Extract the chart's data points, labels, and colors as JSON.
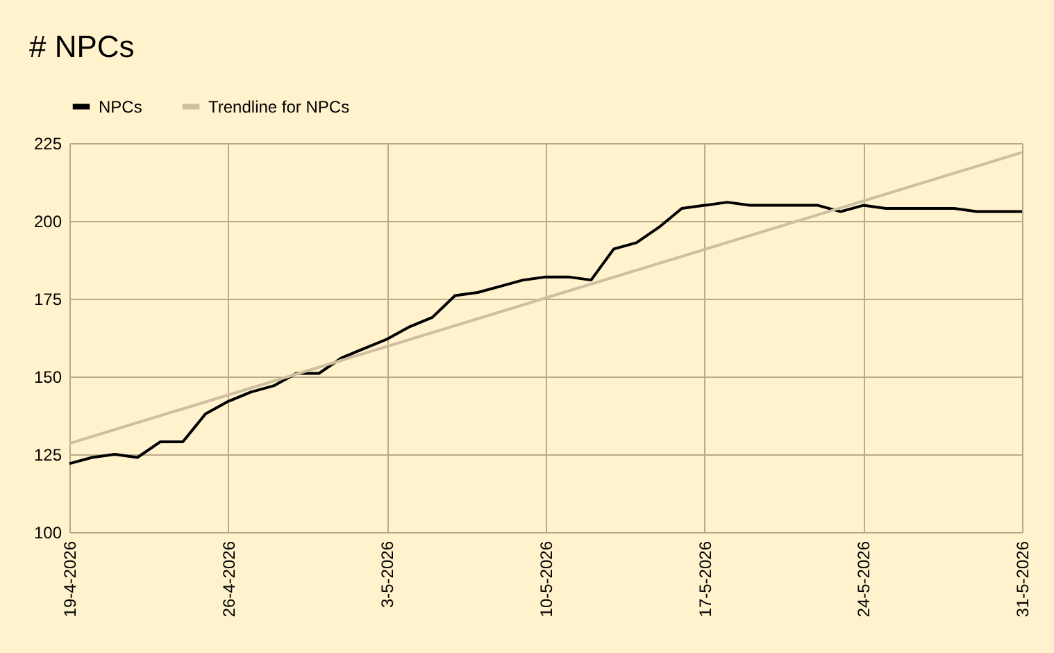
{
  "chart_data": {
    "type": "line",
    "title": "# NPCs",
    "x": [
      "2026-04-19",
      "2026-04-20",
      "2026-04-21",
      "2026-04-22",
      "2026-04-23",
      "2026-04-24",
      "2026-04-25",
      "2026-04-26",
      "2026-04-27",
      "2026-04-28",
      "2026-04-29",
      "2026-04-30",
      "2026-05-01",
      "2026-05-02",
      "2026-05-03",
      "2026-05-04",
      "2026-05-05",
      "2026-05-06",
      "2026-05-07",
      "2026-05-08",
      "2026-05-09",
      "2026-05-10",
      "2026-05-11",
      "2026-05-12",
      "2026-05-13",
      "2026-05-14",
      "2026-05-15",
      "2026-05-16",
      "2026-05-17",
      "2026-05-18",
      "2026-05-19",
      "2026-05-20",
      "2026-05-21",
      "2026-05-22",
      "2026-05-23",
      "2026-05-24",
      "2026-05-25",
      "2026-05-26",
      "2026-05-27",
      "2026-05-28",
      "2026-05-29",
      "2026-05-30",
      "2026-05-31"
    ],
    "series": [
      {
        "name": "NPCs",
        "color": "#000000",
        "values": [
          122,
          124,
          125,
          124,
          129,
          129,
          138,
          142,
          145,
          147,
          151,
          151,
          156,
          159,
          162,
          166,
          169,
          176,
          177,
          179,
          181,
          182,
          182,
          181,
          191,
          193,
          198,
          204,
          205,
          206,
          205,
          205,
          205,
          205,
          203,
          205,
          204,
          204,
          204,
          204,
          203,
          203,
          203
        ]
      },
      {
        "name": "Trendline for NPCs",
        "type": "line",
        "color": "#cdbf9f",
        "x": [
          "2026-04-19",
          "2026-05-31"
        ],
        "values": [
          128.5,
          222
        ]
      }
    ],
    "xlim": [
      "2026-04-19",
      "2026-05-31"
    ],
    "xticks": [
      {
        "value": "2026-04-19",
        "label": "19-4-2026"
      },
      {
        "value": "2026-04-26",
        "label": "26-4-2026"
      },
      {
        "value": "2026-05-03",
        "label": "3-5-2026"
      },
      {
        "value": "2026-05-10",
        "label": "10-5-2026"
      },
      {
        "value": "2026-05-17",
        "label": "17-5-2026"
      },
      {
        "value": "2026-05-24",
        "label": "24-5-2026"
      },
      {
        "value": "2026-05-31",
        "label": "31-5-2026"
      }
    ],
    "ylim": [
      100,
      225
    ],
    "yticks": [
      100,
      125,
      150,
      175,
      200,
      225
    ],
    "grid": true,
    "legend": "top",
    "marker": "none",
    "line_style": "solid"
  }
}
